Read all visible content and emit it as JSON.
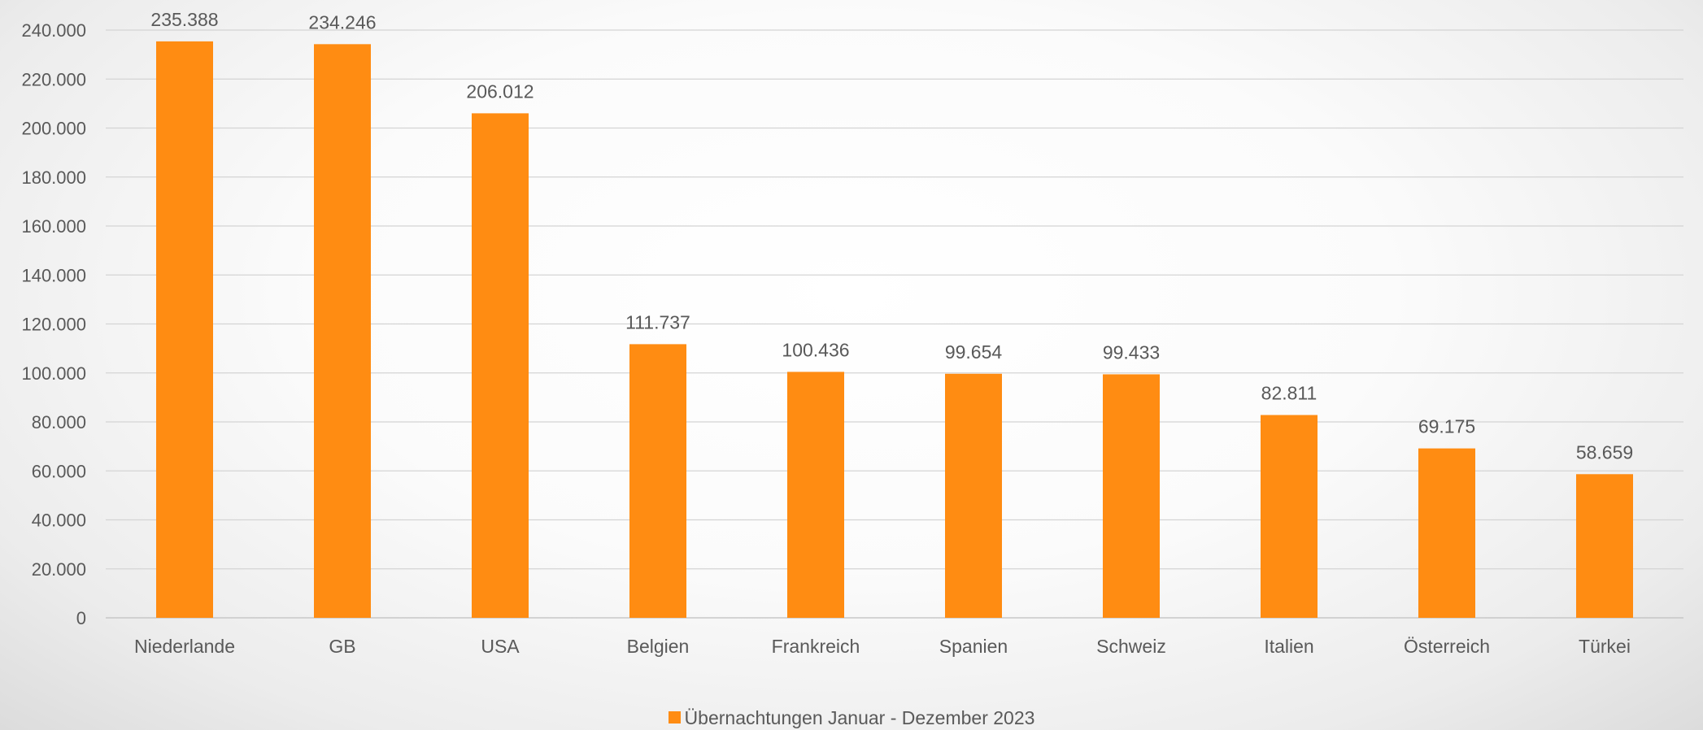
{
  "chart_data": {
    "type": "bar",
    "categories": [
      "Niederlande",
      "GB",
      "USA",
      "Belgien",
      "Frankreich",
      "Spanien",
      "Schweiz",
      "Italien",
      "Österreich",
      "Türkei"
    ],
    "series": [
      {
        "name": "Übernachtungen Januar - Dezember 2023",
        "values": [
          235388,
          234246,
          206012,
          111737,
          100436,
          99654,
          99433,
          82811,
          69175,
          58659
        ],
        "data_labels": [
          "235.388",
          "234.246",
          "206.012",
          "111.737",
          "100.436",
          "99.654",
          "99.433",
          "82.811",
          "69.175",
          "58.659"
        ],
        "color": "#FF8C12"
      }
    ],
    "ylim": [
      0,
      240000
    ],
    "yticks": [
      0,
      20000,
      40000,
      60000,
      80000,
      100000,
      120000,
      140000,
      160000,
      180000,
      200000,
      220000,
      240000
    ],
    "ytick_labels": [
      "0",
      "20.000",
      "40.000",
      "60.000",
      "80.000",
      "100.000",
      "120.000",
      "140.000",
      "160.000",
      "180.000",
      "200.000",
      "220.000",
      "240.000"
    ],
    "grid": true,
    "legend": "bottom-center",
    "title": "",
    "xlabel": "",
    "ylabel": ""
  },
  "legend": {
    "label": "Übernachtungen Januar - Dezember 2023",
    "color": "#FF8C12"
  }
}
